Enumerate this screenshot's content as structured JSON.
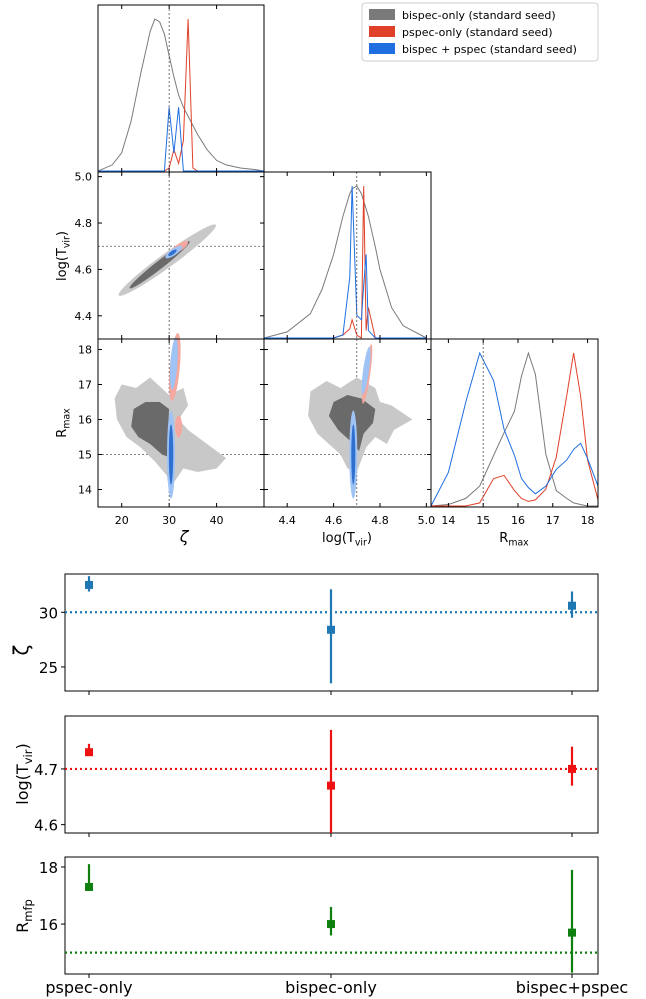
{
  "chart_data": [
    {
      "type": "corner",
      "legend": {
        "placement": "top-right",
        "entries": [
          {
            "label": "bispec-only (standard seed)",
            "color": "#7a7a7a"
          },
          {
            "label": "pspec-only (standard seed)",
            "color": "#e0402a"
          },
          {
            "label": "bispec + pspec (standard seed)",
            "color": "#1f6fe0"
          }
        ]
      },
      "parameters": [
        {
          "label": "ζ",
          "truth": 30,
          "range": [
            15,
            50
          ],
          "ticks": [
            "20",
            "30",
            "40"
          ]
        },
        {
          "label": "log(T_vir)",
          "truth": 4.7,
          "range": [
            4.3,
            5.02
          ],
          "ticks": [
            "4.4",
            "4.6",
            "4.8",
            "5.0"
          ]
        },
        {
          "label": "R_max",
          "truth": 15,
          "range": [
            13.5,
            18.3
          ],
          "ticks": [
            "14",
            "15",
            "16",
            "17",
            "18"
          ]
        }
      ],
      "ylabels": {
        "row1": "log(T_vir)",
        "row2": "R_max"
      },
      "row1_yticks": [
        "4.4",
        "4.6",
        "4.8",
        "5.0"
      ],
      "row2_yticks": [
        "14",
        "15",
        "16",
        "17",
        "18"
      ],
      "marginals": {
        "zeta": {
          "x": [
            15,
            18,
            20,
            22,
            24,
            26,
            27,
            28,
            29,
            30,
            31,
            32,
            33,
            34,
            35,
            36,
            38,
            40,
            42,
            45,
            48,
            50
          ],
          "bispec": [
            0.0,
            0.04,
            0.12,
            0.33,
            0.64,
            0.92,
            1.0,
            0.98,
            0.9,
            0.76,
            0.62,
            0.5,
            0.42,
            0.36,
            0.3,
            0.24,
            0.14,
            0.07,
            0.04,
            0.02,
            0.01,
            0.0
          ],
          "pspec": [
            0.0,
            0.0,
            0.0,
            0.0,
            0.0,
            0.0,
            0.0,
            0.0,
            0.0,
            0.02,
            0.14,
            0.05,
            0.2,
            1.0,
            0.02,
            0.0,
            0.0,
            0.0,
            0.0,
            0.0,
            0.0,
            0.0
          ],
          "combined": [
            0.0,
            0.0,
            0.0,
            0.0,
            0.0,
            0.0,
            0.0,
            0.0,
            0.0,
            0.42,
            0.12,
            0.42,
            0.0,
            0.0,
            0.0,
            0.0,
            0.0,
            0.0,
            0.0,
            0.0,
            0.0,
            0.0
          ]
        },
        "logTvir": {
          "x": [
            4.3,
            4.4,
            4.5,
            4.55,
            4.6,
            4.64,
            4.67,
            4.68,
            4.7,
            4.72,
            4.73,
            4.74,
            4.75,
            4.78,
            4.8,
            4.85,
            4.9,
            5.0
          ],
          "bispec": [
            0.0,
            0.04,
            0.16,
            0.32,
            0.55,
            0.8,
            0.95,
            0.98,
            1.0,
            0.95,
            0.9,
            0.85,
            0.8,
            0.6,
            0.45,
            0.2,
            0.08,
            0.0
          ],
          "pspec": [
            0.0,
            0.0,
            0.0,
            0.0,
            0.0,
            0.02,
            0.06,
            0.12,
            0.02,
            0.0,
            1.0,
            0.05,
            0.2,
            0.0,
            0.0,
            0.0,
            0.0,
            0.0
          ],
          "combined": [
            0.0,
            0.0,
            0.0,
            0.0,
            0.0,
            0.02,
            0.4,
            1.0,
            0.15,
            0.12,
            0.35,
            0.55,
            0.05,
            0.0,
            0.0,
            0.0,
            0.0,
            0.0
          ]
        },
        "Rmax": {
          "x": [
            13.5,
            14.0,
            14.5,
            14.9,
            15.3,
            15.6,
            15.9,
            16.1,
            16.3,
            16.5,
            16.8,
            17.1,
            17.4,
            17.6,
            17.8,
            18.0,
            18.3
          ],
          "bispec": [
            0.0,
            0.01,
            0.05,
            0.13,
            0.33,
            0.48,
            0.62,
            0.85,
            1.0,
            0.86,
            0.34,
            0.1,
            0.05,
            0.02,
            0.01,
            0.0,
            0.0
          ],
          "pspec": [
            0.0,
            0.0,
            0.0,
            0.02,
            0.18,
            0.2,
            0.1,
            0.05,
            0.03,
            0.04,
            0.11,
            0.32,
            0.72,
            1.0,
            0.72,
            0.3,
            0.04
          ],
          "combined": [
            0.0,
            0.22,
            0.68,
            1.0,
            0.82,
            0.5,
            0.33,
            0.18,
            0.12,
            0.08,
            0.13,
            0.24,
            0.3,
            0.37,
            0.41,
            0.31,
            0.13
          ]
        }
      }
    },
    {
      "type": "scatter",
      "subtype": "errorbar",
      "categories": [
        "pspec-only",
        "bispec-only",
        "bispec+pspec"
      ],
      "panels": [
        {
          "ylabel": "ζ",
          "color": "#1f77b4",
          "truth": 30,
          "ylim": [
            22.8,
            33.5
          ],
          "yticks": [
            "25",
            "30"
          ],
          "values": [
            32.5,
            28.4,
            30.6
          ],
          "err_low": [
            0.6,
            4.9,
            1.1
          ],
          "err_high": [
            0.8,
            3.7,
            1.3
          ]
        },
        {
          "ylabel": "log(T_vir)",
          "color": "#ee1111",
          "truth": 4.7,
          "ylim": [
            4.585,
            4.795
          ],
          "yticks": [
            "4.6",
            "4.7"
          ],
          "values": [
            4.73,
            4.67,
            4.7
          ],
          "err_low": [
            0.005,
            0.085,
            0.03
          ],
          "err_high": [
            0.015,
            0.1,
            0.04
          ]
        },
        {
          "ylabel": "R_mfp",
          "color": "#0f7f0f",
          "truth": 15,
          "ylim": [
            14.25,
            18.35
          ],
          "yticks": [
            "16",
            "18"
          ],
          "values": [
            17.3,
            16.0,
            15.7
          ],
          "err_low": [
            0.0,
            0.4,
            1.4
          ],
          "err_high": [
            0.8,
            0.6,
            2.2
          ]
        }
      ]
    }
  ]
}
